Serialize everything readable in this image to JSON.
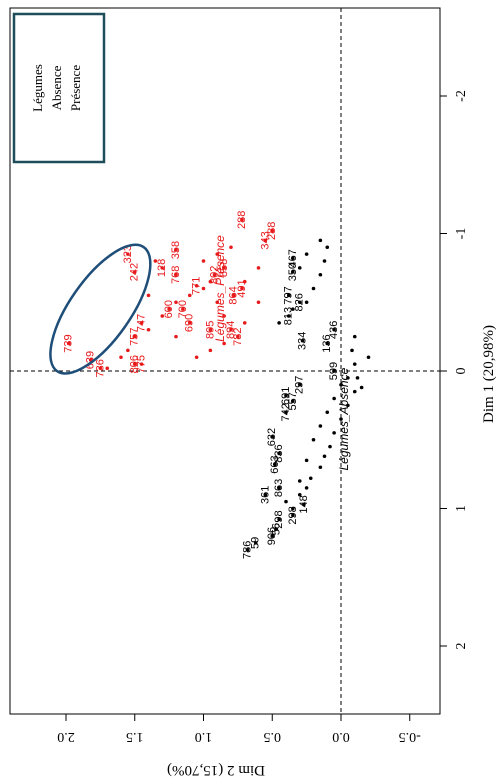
{
  "chart_data": {
    "type": "scatter",
    "x_axis": {
      "label": "Dim 1 (20,98%)",
      "ticks": [
        -2,
        -1,
        0,
        1,
        2
      ],
      "tick_labels": [
        "-2",
        "-1",
        "0",
        "1",
        "2"
      ]
    },
    "y_axis": {
      "label": "Dim 2 (15,70%)",
      "ticks": [
        -0.5,
        0.0,
        0.5,
        1.0,
        1.5,
        2.0
      ],
      "tick_labels": [
        "-0.5",
        "0.0",
        "0.5",
        "1.0",
        "1.5",
        "2.0"
      ]
    },
    "legend": {
      "title": "Légumes",
      "placement": "top-left",
      "entries": [
        {
          "label": "Absence",
          "color": "#000000"
        },
        {
          "label": "Présence",
          "color": "#e8191b"
        }
      ]
    },
    "centroids": [
      {
        "label": "Légumes_Absence",
        "x": 0.35,
        "y": -0.05,
        "color": "#000000"
      },
      {
        "label": "Légumes_Présence",
        "x": -0.6,
        "y": 0.85,
        "color": "#e8191b"
      }
    ],
    "series": [
      {
        "name": "Absence",
        "color": "#000000",
        "points": [
          {
            "x": 1.05,
            "y": 0.35,
            "label": "298"
          },
          {
            "x": 0.97,
            "y": 0.27,
            "label": "148"
          },
          {
            "x": 1.2,
            "y": 0.5,
            "label": "906"
          },
          {
            "x": 1.15,
            "y": 0.47,
            "label": "56"
          },
          {
            "x": 1.3,
            "y": 0.68,
            "label": "786"
          },
          {
            "x": 1.25,
            "y": 0.62,
            "label": "59"
          },
          {
            "x": 1.08,
            "y": 0.45,
            "label": "298"
          },
          {
            "x": 0.9,
            "y": 0.55,
            "label": "361"
          },
          {
            "x": 0.85,
            "y": 0.45,
            "label": "863"
          },
          {
            "x": 0.68,
            "y": 0.48,
            "label": "663"
          },
          {
            "x": 0.6,
            "y": 0.45,
            "label": "836"
          },
          {
            "x": 0.48,
            "y": 0.5,
            "label": "632"
          },
          {
            "x": 0.3,
            "y": 0.4,
            "label": "742"
          },
          {
            "x": 0.22,
            "y": 0.35,
            "label": "557"
          },
          {
            "x": 0.18,
            "y": 0.4,
            "label": "691"
          },
          {
            "x": 0.1,
            "y": 0.3,
            "label": "297"
          },
          {
            "x": -0.2,
            "y": 0.1,
            "label": "136"
          },
          {
            "x": -0.3,
            "y": 0.05,
            "label": "436"
          },
          {
            "x": -0.22,
            "y": 0.28,
            "label": "334"
          },
          {
            "x": -0.4,
            "y": 0.38,
            "label": "813"
          },
          {
            "x": -0.5,
            "y": 0.3,
            "label": "826"
          },
          {
            "x": -0.55,
            "y": 0.38,
            "label": "797"
          },
          {
            "x": -0.72,
            "y": 0.35,
            "label": "350"
          },
          {
            "x": -0.82,
            "y": 0.35,
            "label": "467"
          },
          {
            "x": 0.0,
            "y": 0.05,
            "label": "599"
          },
          {
            "x": 0.9,
            "y": 0.3
          },
          {
            "x": 0.85,
            "y": 0.25
          },
          {
            "x": 0.78,
            "y": 0.22
          },
          {
            "x": 0.7,
            "y": 0.15
          },
          {
            "x": 0.62,
            "y": 0.12
          },
          {
            "x": 0.55,
            "y": 0.08
          },
          {
            "x": 0.45,
            "y": 0.05
          },
          {
            "x": 0.35,
            "y": 0.0
          },
          {
            "x": 0.25,
            "y": -0.05
          },
          {
            "x": 0.15,
            "y": -0.1
          },
          {
            "x": 0.05,
            "y": -0.12
          },
          {
            "x": -0.05,
            "y": -0.1
          },
          {
            "x": -0.15,
            "y": -0.08
          },
          {
            "x": -0.25,
            "y": -0.1
          },
          {
            "x": 1.0,
            "y": 0.35
          },
          {
            "x": 0.95,
            "y": 0.4
          },
          {
            "x": 0.8,
            "y": 0.3
          },
          {
            "x": 0.65,
            "y": 0.25
          },
          {
            "x": 0.5,
            "y": 0.2
          },
          {
            "x": 0.4,
            "y": 0.15
          },
          {
            "x": 0.3,
            "y": 0.1
          },
          {
            "x": 0.2,
            "y": 0.05
          },
          {
            "x": 0.1,
            "y": 0.0
          },
          {
            "x": -0.6,
            "y": 0.2
          },
          {
            "x": -0.7,
            "y": 0.15
          },
          {
            "x": -0.8,
            "y": 0.12
          },
          {
            "x": -0.9,
            "y": 0.1
          },
          {
            "x": -0.95,
            "y": 0.15
          },
          {
            "x": -0.85,
            "y": 0.25
          },
          {
            "x": -0.75,
            "y": 0.3
          },
          {
            "x": -0.5,
            "y": 0.25
          },
          {
            "x": -0.45,
            "y": 0.35
          },
          {
            "x": -0.35,
            "y": 0.45
          },
          {
            "x": 0.05,
            "y": -0.05
          },
          {
            "x": 0.12,
            "y": -0.15
          },
          {
            "x": -0.1,
            "y": -0.2
          }
        ]
      },
      {
        "name": "Présence",
        "color": "#e8191b",
        "points": [
          {
            "x": -0.2,
            "y": 1.98,
            "label": "739"
          },
          {
            "x": -0.08,
            "y": 1.82,
            "label": "639"
          },
          {
            "x": -0.02,
            "y": 1.75,
            "label": "736"
          },
          {
            "x": -0.05,
            "y": 1.45,
            "label": "775"
          },
          {
            "x": -0.05,
            "y": 1.5,
            "label": "806"
          },
          {
            "x": -0.25,
            "y": 1.5,
            "label": "757"
          },
          {
            "x": -0.35,
            "y": 1.45,
            "label": "747"
          },
          {
            "x": -0.85,
            "y": 1.55,
            "label": "323"
          },
          {
            "x": -0.72,
            "y": 1.5,
            "label": "242"
          },
          {
            "x": -0.7,
            "y": 1.2,
            "label": "768"
          },
          {
            "x": -0.75,
            "y": 1.3,
            "label": "128"
          },
          {
            "x": -0.88,
            "y": 1.2,
            "label": "358"
          },
          {
            "x": -0.45,
            "y": 1.15,
            "label": "700"
          },
          {
            "x": -0.35,
            "y": 1.1,
            "label": "690"
          },
          {
            "x": -0.3,
            "y": 0.95,
            "label": "805"
          },
          {
            "x": -0.7,
            "y": 0.92,
            "label": "802"
          },
          {
            "x": -0.75,
            "y": 0.85,
            "label": "858"
          },
          {
            "x": -1.1,
            "y": 0.72,
            "label": "288"
          },
          {
            "x": -1.02,
            "y": 0.5,
            "label": "288"
          },
          {
            "x": -0.95,
            "y": 0.55,
            "label": "343"
          },
          {
            "x": -0.55,
            "y": 0.78,
            "label": "864"
          },
          {
            "x": -0.3,
            "y": 0.8,
            "label": "894"
          },
          {
            "x": -0.6,
            "y": 0.72,
            "label": "491"
          },
          {
            "x": -0.25,
            "y": 0.75,
            "label": "782"
          },
          {
            "x": -0.45,
            "y": 1.25,
            "label": "600"
          },
          {
            "x": -0.62,
            "y": 1.05,
            "label": "771"
          },
          {
            "x": -0.1,
            "y": 1.6
          },
          {
            "x": -0.15,
            "y": 1.55
          },
          {
            "x": -0.3,
            "y": 1.4
          },
          {
            "x": -0.4,
            "y": 1.3
          },
          {
            "x": -0.5,
            "y": 1.2
          },
          {
            "x": -0.55,
            "y": 1.1
          },
          {
            "x": -0.6,
            "y": 1.0
          },
          {
            "x": -0.65,
            "y": 0.95
          },
          {
            "x": -0.8,
            "y": 1.0
          },
          {
            "x": -0.85,
            "y": 0.9
          },
          {
            "x": -0.9,
            "y": 0.8
          },
          {
            "x": -0.5,
            "y": 0.9
          },
          {
            "x": -0.4,
            "y": 0.85
          },
          {
            "x": -0.35,
            "y": 0.7
          },
          {
            "x": -0.2,
            "y": 0.85
          },
          {
            "x": -0.15,
            "y": 0.95
          },
          {
            "x": -0.1,
            "y": 1.05
          },
          {
            "x": -0.25,
            "y": 1.2
          },
          {
            "x": -0.65,
            "y": 0.7
          },
          {
            "x": -0.75,
            "y": 0.6
          },
          {
            "x": -0.5,
            "y": 0.6
          },
          {
            "x": -0.02,
            "y": 1.7
          },
          {
            "x": -0.55,
            "y": 1.4
          },
          {
            "x": -0.8,
            "y": 1.35
          }
        ]
      }
    ],
    "annotation": {
      "type": "ellipse",
      "color": "#1f4e79",
      "center_x": -0.45,
      "center_y": 1.75,
      "rx": 0.55,
      "ry": 0.22,
      "angle_deg": -55
    }
  }
}
